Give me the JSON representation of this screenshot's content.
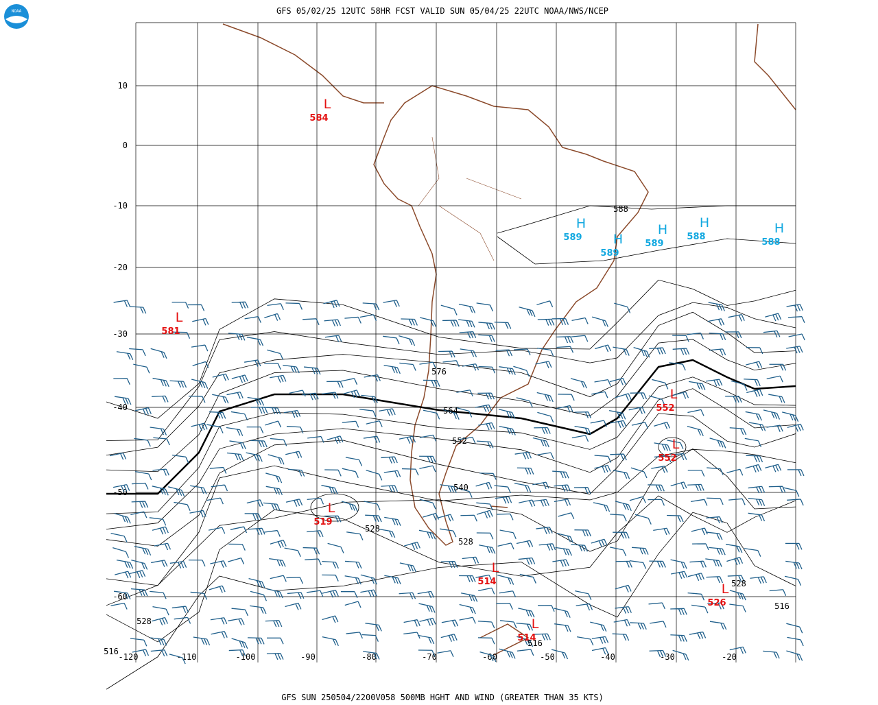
{
  "header": {
    "title": "GFS 05/02/25 12UTC 58HR FCST VALID SUN 05/04/25 22UTC NOAA/NWS/NCEP"
  },
  "logo": {
    "label": "NOAA"
  },
  "map": {
    "lat_labels": [
      "10",
      "0",
      "-10",
      "-20",
      "-30",
      "-40",
      "-50",
      "-60"
    ],
    "lon_labels": [
      "-120",
      "-110",
      "-100",
      "-90",
      "-80",
      "-70",
      "-60",
      "-50",
      "-40",
      "-30",
      "-20"
    ],
    "systems": [
      {
        "symbol": "L",
        "value": "584"
      },
      {
        "symbol": "L",
        "value": "581"
      },
      {
        "symbol": "H",
        "value": "589"
      },
      {
        "symbol": "H",
        "value": "589"
      },
      {
        "symbol": "H",
        "value": "589"
      },
      {
        "symbol": "H",
        "value": "588"
      },
      {
        "symbol": "H",
        "value": "588"
      },
      {
        "symbol": "L",
        "value": "552"
      },
      {
        "symbol": "L",
        "value": "552"
      },
      {
        "symbol": "L",
        "value": "519"
      },
      {
        "symbol": "L",
        "value": "514"
      },
      {
        "symbol": "L",
        "value": "514"
      },
      {
        "symbol": "L",
        "value": "526"
      }
    ],
    "contour_labels": [
      "588",
      "576",
      "564",
      "552",
      "540",
      "528",
      "528",
      "528",
      "528",
      "516",
      "516",
      "516"
    ]
  },
  "footer": {
    "caption": "GFS SUN 250504/2200V058 500MB HGHT AND WIND (GREATER THAN 35 KTS)"
  }
}
